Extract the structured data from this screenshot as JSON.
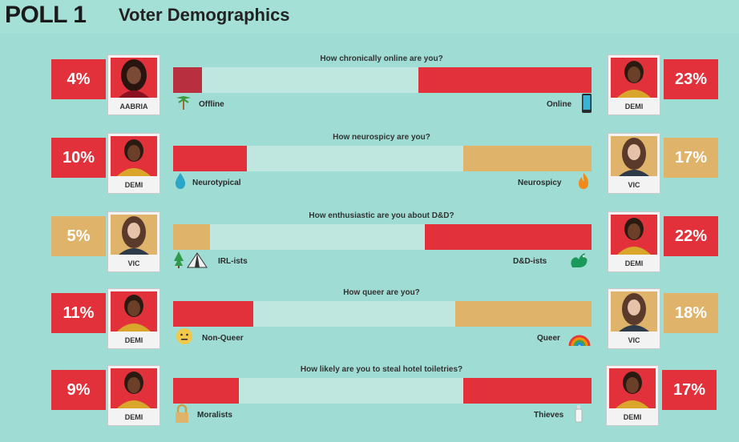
{
  "header": {
    "poll": "POLL 1",
    "title": "Voter Demographics"
  },
  "colors": {
    "red": "#e3313c",
    "gold": "#e0b36a",
    "background": "#9fdcd3"
  },
  "polls": [
    {
      "question": "How chronically online are you?",
      "left": {
        "person": "AABRIA",
        "percent": "4%",
        "label": "Offline",
        "icon": "palm-tree-icon"
      },
      "right": {
        "person": "DEMI",
        "percent": "23%",
        "label": "Online",
        "icon": "phone-icon"
      }
    },
    {
      "question": "How neurospicy are you?",
      "left": {
        "person": "DEMI",
        "percent": "10%",
        "label": "Neurotypical",
        "icon": "water-drop-icon"
      },
      "right": {
        "person": "VIC",
        "percent": "17%",
        "label": "Neurospicy",
        "icon": "fire-icon"
      }
    },
    {
      "question": "How enthusiastic are you about D&D?",
      "left": {
        "person": "VIC",
        "percent": "5%",
        "label": "IRL-ists",
        "icon": "tree-tent-icon"
      },
      "right": {
        "person": "DEMI",
        "percent": "22%",
        "label": "D&D-ists",
        "icon": "dragon-icon"
      }
    },
    {
      "question": "How queer are you?",
      "left": {
        "person": "DEMI",
        "percent": "11%",
        "label": "Non-Queer",
        "icon": "neutral-face-icon"
      },
      "right": {
        "person": "VIC",
        "percent": "18%",
        "label": "Queer",
        "icon": "rainbow-icon"
      }
    },
    {
      "question": "How likely are you to steal hotel toiletries?",
      "left": {
        "person": "DEMI",
        "percent": "9%",
        "label": "Moralists",
        "icon": "lock-icon"
      },
      "right": {
        "person": "DEMI",
        "percent": "17%",
        "label": "Thieves",
        "icon": "bottle-icon"
      }
    }
  ]
}
